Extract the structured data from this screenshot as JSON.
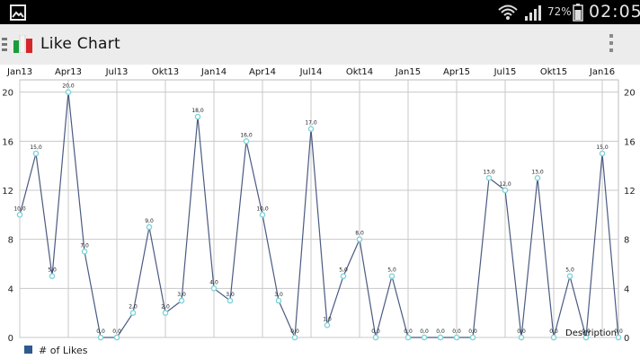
{
  "status_bar": {
    "battery_percent": "72%",
    "time": "02:05"
  },
  "app_bar": {
    "title": "Like Chart",
    "logo_icon": "italy-flag-icon",
    "menu_icon": "overflow-menu-icon"
  },
  "chart_data": {
    "type": "line",
    "title": "",
    "x_labels": [
      "Jan13",
      "Apr13",
      "Jul13",
      "Okt13",
      "Jan14",
      "Apr14",
      "Jul14",
      "Okt14",
      "Jan15",
      "Apr15",
      "Jul15",
      "Okt15",
      "Jan16"
    ],
    "series": [
      {
        "name": "# of Likes",
        "color": "#4a5a82",
        "values": [
          10,
          15,
          5,
          20,
          7,
          0,
          0,
          2,
          9,
          2,
          3,
          18,
          4,
          3,
          16,
          10,
          3,
          0,
          17,
          1,
          5,
          8,
          0,
          5,
          0,
          0,
          0,
          0,
          0,
          13,
          12,
          0,
          13,
          0,
          5,
          0,
          15,
          0
        ],
        "value_labels": [
          "10,0",
          "15,0",
          "5,0",
          "20,0",
          "7,0",
          "0,0",
          "0,0",
          "2,0",
          "9,0",
          "2,0",
          "3,0",
          "18,0",
          "4,0",
          "3,0",
          "16,0",
          "10,0",
          "3,0",
          "0,0",
          "17,0",
          "1,0",
          "5,0",
          "8,0",
          "0,0",
          "5,0",
          "0,0",
          "0,0",
          "0,0",
          "0,0",
          "0,0",
          "13,0",
          "12,0",
          "0,0",
          "13,0",
          "0,0",
          "5,0",
          "0,0",
          "15,0",
          "0,0"
        ]
      }
    ],
    "y_ticks": [
      "0",
      "4",
      "8",
      "12",
      "16",
      "20"
    ],
    "ylim": [
      0,
      21
    ],
    "grid": true,
    "legend": {
      "label": "# of Likes",
      "color": "#2e5a8e",
      "position": "bottom-left"
    },
    "description": "Description"
  }
}
